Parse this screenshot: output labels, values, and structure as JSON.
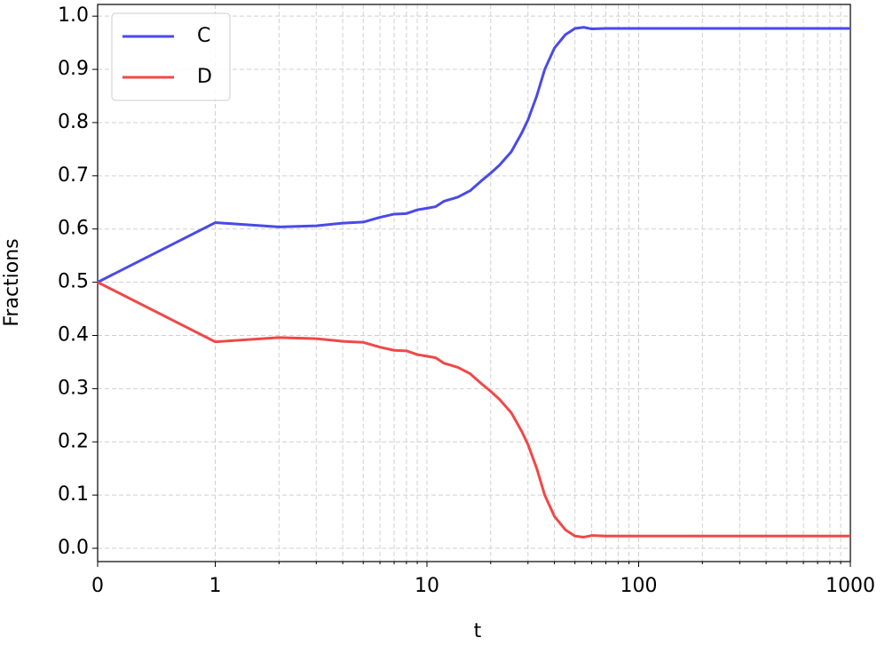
{
  "chart_data": {
    "type": "line",
    "xlabel": "t",
    "ylabel": "Fractions",
    "xscale": "symlog",
    "linthresh": 1,
    "linscale": 0.5,
    "x": [
      0,
      1,
      2,
      3,
      4,
      5,
      6,
      7,
      8,
      9,
      10,
      11,
      12,
      14,
      16,
      18,
      20,
      22,
      25,
      28,
      30,
      33,
      36,
      40,
      45,
      50,
      55,
      60,
      70,
      100,
      200,
      500,
      1000
    ],
    "series": [
      {
        "name": "C",
        "color": "#4a4ae8",
        "values": [
          0.5,
          0.612,
          0.604,
          0.606,
          0.611,
          0.613,
          0.622,
          0.628,
          0.629,
          0.636,
          0.639,
          0.642,
          0.652,
          0.66,
          0.672,
          0.69,
          0.705,
          0.72,
          0.745,
          0.78,
          0.805,
          0.85,
          0.9,
          0.94,
          0.965,
          0.977,
          0.979,
          0.976,
          0.977,
          0.977,
          0.977,
          0.977,
          0.977
        ]
      },
      {
        "name": "D",
        "color": "#f04848",
        "values": [
          0.5,
          0.388,
          0.396,
          0.394,
          0.389,
          0.387,
          0.378,
          0.372,
          0.371,
          0.364,
          0.361,
          0.358,
          0.348,
          0.34,
          0.328,
          0.31,
          0.295,
          0.28,
          0.255,
          0.22,
          0.195,
          0.15,
          0.1,
          0.06,
          0.035,
          0.023,
          0.021,
          0.024,
          0.023,
          0.023,
          0.023,
          0.023,
          0.023
        ]
      }
    ],
    "xlim": [
      0,
      1000
    ],
    "xticks": [
      0,
      1,
      10,
      100,
      1000
    ],
    "xminorticks": [
      2,
      3,
      4,
      5,
      6,
      7,
      8,
      9,
      20,
      30,
      40,
      50,
      60,
      70,
      80,
      90,
      200,
      300,
      400,
      500,
      600,
      700,
      800,
      900
    ],
    "ylim": [
      -0.025,
      1.022
    ],
    "yticks": [
      {
        "value": 0,
        "label": "0.0"
      },
      0.1,
      0.2,
      0.3,
      0.4,
      0.5,
      0.6,
      0.7,
      0.8,
      0.9,
      {
        "value": 1,
        "label": "1.0"
      }
    ],
    "grid": true,
    "legend": "upper left"
  }
}
